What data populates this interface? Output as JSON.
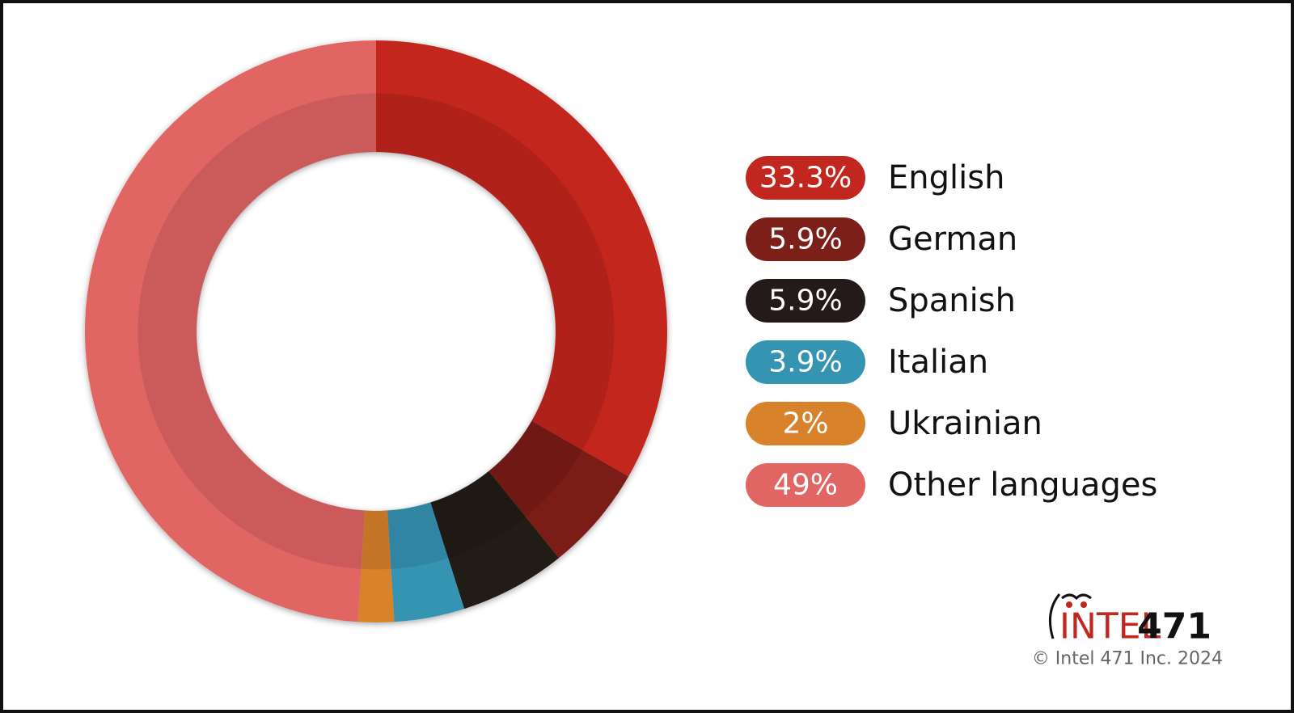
{
  "chart_data": {
    "type": "donut",
    "categories": [
      "English",
      "German",
      "Spanish",
      "Italian",
      "Ukrainian",
      "Other languages"
    ],
    "values": [
      33.3,
      5.9,
      5.9,
      3.9,
      2,
      49
    ],
    "value_labels": [
      "33.3%",
      "5.9%",
      "5.9%",
      "3.9%",
      "2%",
      "49%"
    ],
    "colors": [
      "#c2271f",
      "#7b1f18",
      "#231a19",
      "#3594b2",
      "#d8822b",
      "#e06563"
    ]
  },
  "brand": {
    "name": "INTEL",
    "number": "471",
    "copyright": "© Intel 471 Inc. 2024"
  }
}
